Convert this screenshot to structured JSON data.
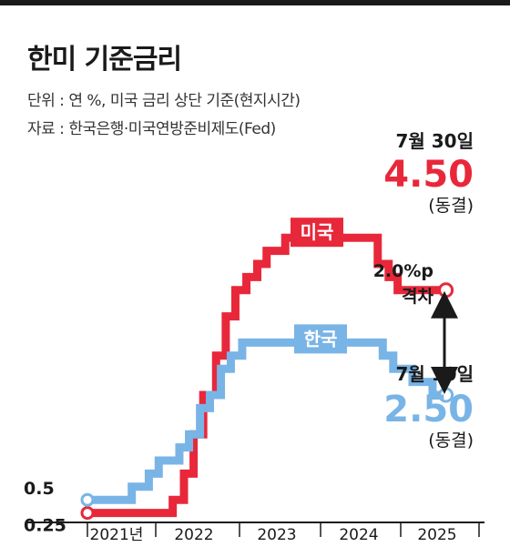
{
  "header": {
    "title": "한미 기준금리",
    "unit_note": "단위 : 연 %, 미국 금리 상단 기준(현지시간)",
    "source_note": "자료 : 한국은행·미국연방준비제도(Fed)"
  },
  "chart_data": {
    "type": "line",
    "step": true,
    "x_tick_labels": [
      "2021년",
      "2022",
      "2023",
      "2024",
      "2025"
    ],
    "y_tick_labels": [
      "0.5",
      "0.25"
    ],
    "xlim": [
      "2021-01-01",
      "2025-08-31"
    ],
    "ylim": [
      0,
      5.5
    ],
    "series": [
      {
        "name": "한국",
        "color": "#79b4e6",
        "points": [
          [
            "2021-01-01",
            0.5
          ],
          [
            "2021-08-26",
            0.75
          ],
          [
            "2021-11-25",
            1.0
          ],
          [
            "2022-01-14",
            1.25
          ],
          [
            "2022-04-14",
            1.5
          ],
          [
            "2022-05-26",
            1.75
          ],
          [
            "2022-07-13",
            2.25
          ],
          [
            "2022-08-25",
            2.5
          ],
          [
            "2022-10-12",
            3.0
          ],
          [
            "2022-11-24",
            3.25
          ],
          [
            "2023-01-13",
            3.5
          ],
          [
            "2024-10-11",
            3.25
          ],
          [
            "2024-11-28",
            3.0
          ],
          [
            "2025-02-25",
            2.75
          ],
          [
            "2025-05-29",
            2.5
          ],
          [
            "2025-07-30",
            2.5
          ]
        ],
        "end_date_label": "7월 10일",
        "end_value_label": "2.50",
        "end_status_label": "(동결)"
      },
      {
        "name": "미국",
        "color": "#e8283a",
        "points": [
          [
            "2021-01-01",
            0.25
          ],
          [
            "2022-03-16",
            0.5
          ],
          [
            "2022-05-04",
            1.0
          ],
          [
            "2022-06-15",
            1.75
          ],
          [
            "2022-07-27",
            2.5
          ],
          [
            "2022-09-21",
            3.25
          ],
          [
            "2022-11-02",
            4.0
          ],
          [
            "2022-12-14",
            4.5
          ],
          [
            "2023-02-01",
            4.75
          ],
          [
            "2023-03-22",
            5.0
          ],
          [
            "2023-05-03",
            5.25
          ],
          [
            "2023-07-26",
            5.5
          ],
          [
            "2024-09-18",
            5.0
          ],
          [
            "2024-11-07",
            4.75
          ],
          [
            "2024-12-18",
            4.5
          ],
          [
            "2025-07-30",
            4.5
          ]
        ],
        "end_date_label": "7월 30일",
        "end_value_label": "4.50",
        "end_status_label": "(동결)"
      }
    ],
    "gap_annotation": [
      "2.0%p",
      "격차"
    ]
  }
}
